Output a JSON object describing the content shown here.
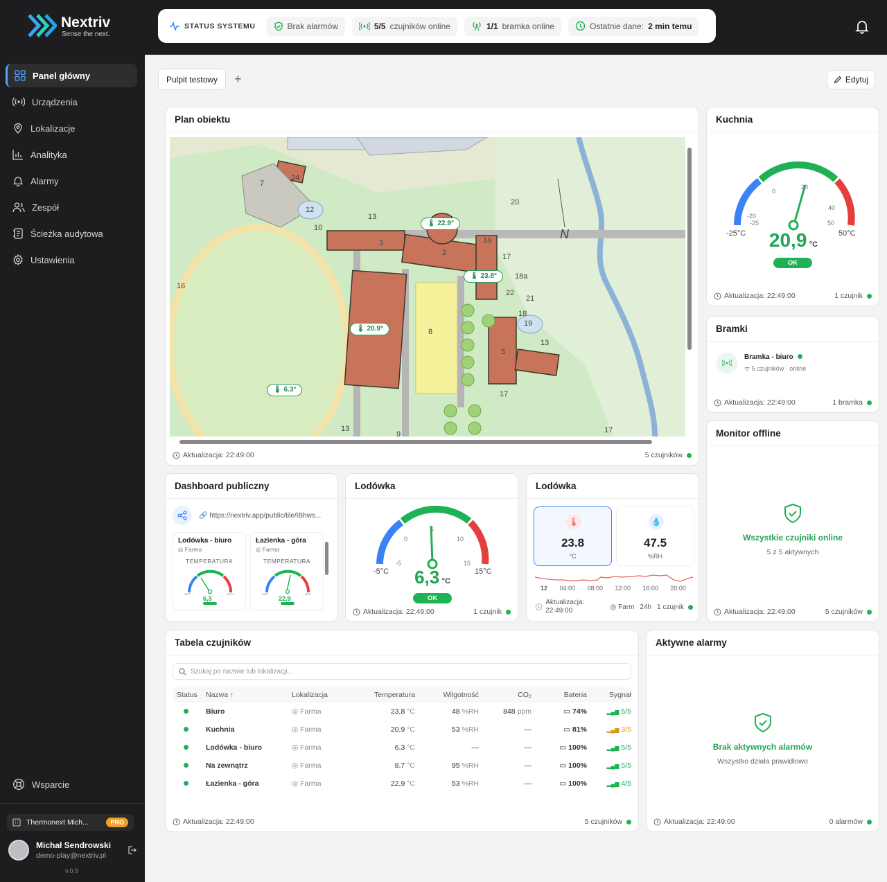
{
  "brand": {
    "name": "Nextriv",
    "tagline": "Sense the next."
  },
  "status": {
    "head": "STATUS SYSTEMU",
    "alarms": "Brak alarmów",
    "sensors_count": "5/5",
    "sensors_label": "czujników online",
    "gateway_count": "1/1",
    "gateway_label": "bramka online",
    "last_label": "Ostatnie dane:",
    "last_value": "2 min temu"
  },
  "nav": {
    "items": [
      {
        "label": "Panel główny",
        "icon": "grid-icon"
      },
      {
        "label": "Urządzenia",
        "icon": "broadcast-icon"
      },
      {
        "label": "Lokalizacje",
        "icon": "pin-icon"
      },
      {
        "label": "Analityka",
        "icon": "bar-chart-icon"
      },
      {
        "label": "Alarmy",
        "icon": "bell-icon"
      },
      {
        "label": "Zespół",
        "icon": "users-icon"
      },
      {
        "label": "Ścieżka audytowa",
        "icon": "audit-icon"
      },
      {
        "label": "Ustawienia",
        "icon": "gear-icon"
      }
    ],
    "support": "Wsparcie"
  },
  "org": {
    "name": "Thermonext Mich...",
    "badge": "PRO"
  },
  "user": {
    "name": "Michał Sendrowski",
    "email": "demo-play@nextriv.pl",
    "version": "v.0.9"
  },
  "toolbar": {
    "tab": "Pulpit testowy",
    "edit": "Edytuj"
  },
  "plan": {
    "title": "Plan obiektu",
    "update": "Aktualizacja: 22:49:00",
    "count": "5 czujników",
    "markers": [
      "22.9°",
      "23.8°",
      "20.9°",
      "6.3°"
    ],
    "labels": [
      "24",
      "7",
      "12",
      "10",
      "13",
      "3",
      "2",
      "1a",
      "17",
      "18a",
      "22",
      "21",
      "16",
      "8",
      "18",
      "19",
      "13",
      "5",
      "17",
      "13",
      "9",
      "17",
      "20",
      "N"
    ]
  },
  "kuchnia": {
    "title": "Kuchnia",
    "value": "20,9",
    "unit": "°C",
    "min": "-25°C",
    "max": "50°C",
    "ticks": [
      "-20",
      "-25",
      "0",
      "20",
      "40",
      "50"
    ],
    "status": "OK",
    "update": "Aktualizacja: 22:49:00",
    "count": "1 czujnik"
  },
  "bramki": {
    "title": "Bramki",
    "name": "Bramka - biuro",
    "sensors": "5 czujników",
    "state": "online",
    "update": "Aktualizacja: 22:49:00",
    "count": "1 bramka"
  },
  "monitor": {
    "title": "Monitor offline",
    "message": "Wszystkie czujniki online",
    "sub": "5 z 5 aktywnych",
    "update": "Aktualizacja: 22:49:00",
    "count": "5 czujników"
  },
  "public": {
    "title": "Dashboard publiczny",
    "url": "https://nextriv.app/public/tile/IBhws...",
    "tiles": [
      {
        "name": "Lodówka - biuro",
        "loc": "Farma",
        "kind": "TEMPERATURA",
        "value": "6,3",
        "min": "-25°C",
        "max": "50°C"
      },
      {
        "name": "Łazienka - góra",
        "loc": "Farma",
        "kind": "TEMPERATURA",
        "value": "22,9",
        "min": "-25°C",
        "max": "50°C"
      }
    ]
  },
  "lodowka1": {
    "title": "Lodówka",
    "value": "6,3",
    "unit": "°C",
    "min": "-5°C",
    "max": "15°C",
    "ticks": [
      "0",
      "5",
      "10",
      "-5",
      "15"
    ],
    "status": "OK",
    "update": "Aktualizacja: 22:49:00",
    "count": "1 czujnik"
  },
  "lodowka2": {
    "title": "Lodówka",
    "temp": "23.8",
    "temp_unit": "°C",
    "hum": "47.5",
    "hum_unit": "%RH",
    "axis": [
      "12",
      "04:00",
      "08:00",
      "12:00",
      "16:00",
      "20:00"
    ],
    "update": "Aktualizacja:",
    "update_time": "22:49:00",
    "loc": "Farm",
    "range": "24h",
    "count": "1 czujnik"
  },
  "table": {
    "title": "Tabela czujników",
    "search": "Szukaj po nazwie lub lokalizacji...",
    "headers": [
      "Status",
      "Nazwa ↑",
      "Lokalizacja",
      "Temperatura",
      "Wilgotność",
      "CO₂",
      "Bateria",
      "Sygnał"
    ],
    "rows": [
      {
        "name": "Biuro",
        "loc": "Farma",
        "temp": "23,8",
        "temp_unit": "°C",
        "hum": "48",
        "hum_unit": "%RH",
        "co2": "848",
        "co2_unit": "ppm",
        "bat": "74%",
        "sig": "5/5",
        "sig_color": "#1fb254"
      },
      {
        "name": "Kuchnia",
        "loc": "Farma",
        "temp": "20,9",
        "temp_unit": "°C",
        "hum": "53",
        "hum_unit": "%RH",
        "co2": "—",
        "co2_unit": "",
        "bat": "81%",
        "sig": "3/5",
        "sig_color": "#d89a1a"
      },
      {
        "name": "Lodówka - biuro",
        "loc": "Farma",
        "temp": "6,3",
        "temp_unit": "°C",
        "hum": "—",
        "hum_unit": "",
        "co2": "—",
        "co2_unit": "",
        "bat": "100%",
        "sig": "5/5",
        "sig_color": "#1fb254"
      },
      {
        "name": "Na zewnątrz",
        "loc": "Farma",
        "temp": "8,7",
        "temp_unit": "°C",
        "hum": "95",
        "hum_unit": "%RH",
        "co2": "—",
        "co2_unit": "",
        "bat": "100%",
        "sig": "5/5",
        "sig_color": "#1fb254"
      },
      {
        "name": "Łazienka - góra",
        "loc": "Farma",
        "temp": "22,9",
        "temp_unit": "°C",
        "hum": "53",
        "hum_unit": "%RH",
        "co2": "—",
        "co2_unit": "",
        "bat": "100%",
        "sig": "4/5",
        "sig_color": "#1fb254"
      }
    ],
    "update": "Aktualizacja: 22:49:00",
    "count": "5 czujników"
  },
  "alarms": {
    "title": "Aktywne alarmy",
    "message": "Brak aktywnych alarmów",
    "sub": "Wszystko działa prawidłowo",
    "update": "Aktualizacja: 22:49:00",
    "count": "0 alarmów"
  },
  "colors": {
    "accent": "#1fb254",
    "blue": "#3b82f6",
    "red": "#e53e3e",
    "sidebar": "#1d1d1f"
  }
}
